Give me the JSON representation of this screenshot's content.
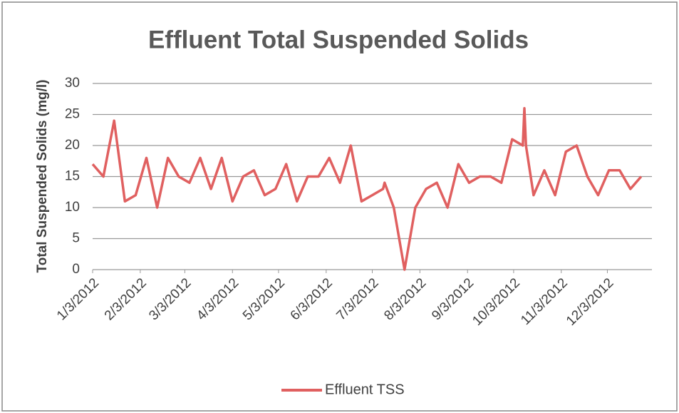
{
  "chart_data": {
    "type": "line",
    "title": "Effluent Total Suspended Solids",
    "y_label": "Total Suspended Solids (mg/l)",
    "x": [
      "1/3/2012",
      "1/10/2012",
      "1/17/2012",
      "1/24/2012",
      "1/31/2012",
      "2/7/2012",
      "2/14/2012",
      "2/21/2012",
      "2/28/2012",
      "3/6/2012",
      "3/13/2012",
      "3/20/2012",
      "3/27/2012",
      "4/3/2012",
      "4/10/2012",
      "4/17/2012",
      "4/24/2012",
      "5/1/2012",
      "5/8/2012",
      "5/15/2012",
      "5/22/2012",
      "5/29/2012",
      "6/5/2012",
      "6/12/2012",
      "6/19/2012",
      "6/26/2012",
      "7/3/2012",
      "7/10/2012",
      "7/11/2012",
      "7/17/2012",
      "7/24/2012",
      "7/31/2012",
      "8/7/2012",
      "8/14/2012",
      "8/21/2012",
      "8/28/2012",
      "9/4/2012",
      "9/11/2012",
      "9/18/2012",
      "9/25/2012",
      "10/2/2012",
      "10/9/2012",
      "10/10/2012",
      "10/11/2012",
      "10/16/2012",
      "10/23/2012",
      "10/30/2012",
      "11/6/2012",
      "11/13/2012",
      "11/20/2012",
      "11/27/2012",
      "12/4/2012",
      "12/11/2012",
      "12/18/2012",
      "12/25/2012"
    ],
    "series": [
      {
        "name": "Effluent TSS",
        "color": "#e06060",
        "values": [
          17,
          15,
          24,
          11,
          12,
          18,
          10,
          18,
          15,
          14,
          18,
          13,
          18,
          11,
          15,
          16,
          12,
          13,
          17,
          11,
          15,
          15,
          18,
          14,
          20,
          11,
          12,
          13,
          14,
          10,
          0,
          10,
          13,
          14,
          10,
          17,
          14,
          15,
          15,
          14,
          21,
          20,
          26,
          20,
          12,
          16,
          12,
          19,
          20,
          15,
          12,
          16,
          16,
          13,
          15
        ]
      }
    ],
    "xlim": [
      "1/3/2012",
      "1/1/2013"
    ],
    "xticks": [
      "1/3/2012",
      "2/3/2012",
      "3/3/2012",
      "4/3/2012",
      "5/3/2012",
      "6/3/2012",
      "7/3/2012",
      "8/3/2012",
      "9/3/2012",
      "10/3/2012",
      "11/3/2012",
      "12/3/2012"
    ],
    "ylim": [
      0,
      30
    ],
    "yticks": [
      0,
      5,
      10,
      15,
      20,
      25,
      30
    ],
    "grid": true,
    "legend": "bottom"
  }
}
